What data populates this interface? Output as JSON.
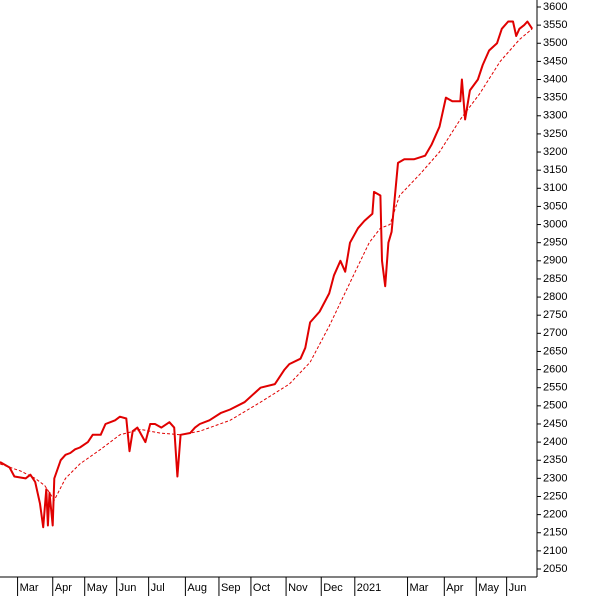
{
  "chart_data": {
    "type": "line",
    "ylim": [
      2050,
      3600
    ],
    "yticks": [
      2050,
      2100,
      2150,
      2200,
      2250,
      2300,
      2350,
      2400,
      2450,
      2500,
      2550,
      2600,
      2650,
      2700,
      2750,
      2800,
      2850,
      2900,
      2950,
      3000,
      3050,
      3100,
      3150,
      3200,
      3250,
      3300,
      3350,
      3400,
      3450,
      3500,
      3550,
      3600
    ],
    "xlim": [
      0,
      336
    ],
    "xticks": [
      {
        "value": 11,
        "label": "Mar"
      },
      {
        "value": 33,
        "label": "Apr"
      },
      {
        "value": 53,
        "label": "May"
      },
      {
        "value": 73,
        "label": "Jun"
      },
      {
        "value": 93,
        "label": "Jul"
      },
      {
        "value": 116,
        "label": "Aug"
      },
      {
        "value": 137,
        "label": "Sep"
      },
      {
        "value": 157,
        "label": "Oct"
      },
      {
        "value": 179,
        "label": "Nov"
      },
      {
        "value": 201,
        "label": "Dec"
      },
      {
        "value": 222,
        "label": "2021"
      },
      {
        "value": 255,
        "label": "Mar"
      },
      {
        "value": 278,
        "label": "Apr"
      },
      {
        "value": 298,
        "label": "May"
      },
      {
        "value": 317,
        "label": "Jun"
      }
    ],
    "series": [
      {
        "color": "#e00000",
        "style": "solid",
        "x": [
          0,
          6,
          9,
          16,
          19,
          22,
          25,
          27,
          29,
          30,
          31,
          33,
          34,
          38,
          41,
          44,
          47,
          50,
          55,
          58,
          63,
          66,
          69,
          72,
          75,
          79,
          81,
          83,
          86,
          91,
          94,
          97,
          101,
          106,
          109,
          111,
          113,
          119,
          122,
          125,
          131,
          138,
          144,
          153,
          163,
          172,
          178,
          181,
          188,
          191,
          194,
          200,
          206,
          209,
          213,
          216,
          219,
          224,
          228,
          233,
          234,
          238,
          239,
          241,
          243,
          245,
          249,
          253,
          259,
          266,
          270,
          275,
          279,
          283,
          288,
          289,
          291,
          294,
          299,
          302,
          306,
          311,
          314,
          318,
          321,
          323,
          325,
          328,
          330,
          333
        ],
        "values": [
          2345,
          2330,
          2305,
          2300,
          2310,
          2290,
          2230,
          2165,
          2270,
          2170,
          2260,
          2170,
          2300,
          2350,
          2365,
          2370,
          2380,
          2385,
          2400,
          2420,
          2420,
          2450,
          2455,
          2460,
          2470,
          2465,
          2375,
          2430,
          2440,
          2400,
          2450,
          2450,
          2440,
          2455,
          2440,
          2305,
          2420,
          2425,
          2440,
          2450,
          2460,
          2480,
          2490,
          2510,
          2550,
          2560,
          2600,
          2615,
          2630,
          2660,
          2730,
          2760,
          2810,
          2860,
          2900,
          2870,
          2950,
          2990,
          3010,
          3030,
          3090,
          3080,
          2900,
          2830,
          2950,
          2980,
          3170,
          3180,
          3180,
          3190,
          3220,
          3270,
          3350,
          3340,
          3340,
          3400,
          3290,
          3370,
          3400,
          3440,
          3480,
          3500,
          3540,
          3560,
          3560,
          3520,
          3540,
          3550,
          3560,
          3540
        ]
      },
      {
        "color": "#e00000",
        "style": "dashed",
        "x": [
          0,
          13,
          22,
          28,
          34,
          41,
          50,
          63,
          75,
          88,
          100,
          113,
          125,
          144,
          163,
          181,
          194,
          206,
          219,
          231,
          238,
          244,
          250,
          263,
          275,
          288,
          300,
          313,
          325,
          333
        ],
        "values": [
          2340,
          2320,
          2300,
          2280,
          2240,
          2300,
          2340,
          2380,
          2420,
          2435,
          2425,
          2420,
          2430,
          2460,
          2510,
          2560,
          2620,
          2720,
          2840,
          2950,
          2990,
          3000,
          3080,
          3140,
          3200,
          3290,
          3360,
          3450,
          3510,
          3540
        ]
      }
    ]
  }
}
